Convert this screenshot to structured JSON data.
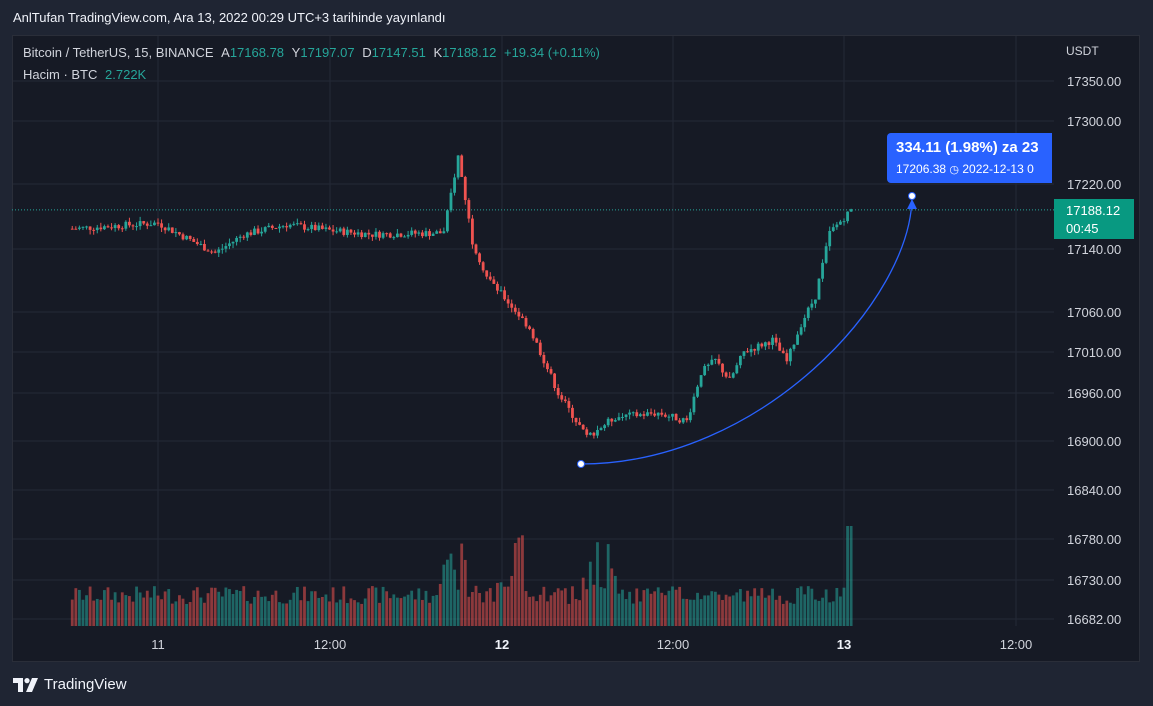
{
  "publish_line": "AnlTufan TradingView.com, Ara 13, 2022 00:29 UTC+3 tarihinde yayınlandı",
  "legend": {
    "symbol": "Bitcoin / TetherUS, 15, BINANCE",
    "open_label": "A",
    "open": "17168.78",
    "high_label": "Y",
    "high": "17197.07",
    "low_label": "D",
    "low": "17147.51",
    "close_label": "K",
    "close": "17188.12",
    "change": "+19.34 (+0.11%)",
    "volume_label": "Hacim · BTC",
    "volume": "2.722K"
  },
  "price_axis": {
    "currency": "USDT",
    "ticks": [
      "17350.00",
      "17300.00",
      "17220.00",
      "17140.00",
      "17060.00",
      "17010.00",
      "16960.00",
      "16900.00",
      "16840.00",
      "16780.00",
      "16730.00",
      "16682.00"
    ]
  },
  "time_axis": {
    "ticks": [
      "11",
      "12:00",
      "12",
      "12:00",
      "13",
      "12:00"
    ],
    "bold": [
      false,
      false,
      true,
      false,
      true,
      false
    ]
  },
  "current_price": {
    "price": "17188.12",
    "countdown": "00:45"
  },
  "measure": {
    "main": "334.11 (1.98%) za 23",
    "price": "17206.38",
    "time": "2022-12-13  0"
  },
  "brand": "TradingView",
  "colors": {
    "up": "#26a69a",
    "down": "#ef5350",
    "accent": "#2962ff",
    "background": "#161a25"
  },
  "chart_data": {
    "type": "candlestick",
    "symbol": "Bitcoin / TetherUS",
    "interval": "15",
    "exchange": "BINANCE",
    "ylim": [
      16682,
      17400
    ],
    "close_path": {
      "time": [
        "10 18:00",
        "11 00:00",
        "11 04:00",
        "11 06:00",
        "11 09:00",
        "11 12:00",
        "11 15:00",
        "11 20:00",
        "11 21:00",
        "11 22:00",
        "11 23:00",
        "12 02:00",
        "12 04:00",
        "12 06:00",
        "12 08:00",
        "12 11:00",
        "12 13:00",
        "12 14:00",
        "12 15:00",
        "12 16:00",
        "12 17:00",
        "12 19:00",
        "12 20:00",
        "12 21:00",
        "12 22:00",
        "12 23:00",
        "13 00:30"
      ],
      "close": [
        17165,
        17172,
        17135,
        17158,
        17170,
        17163,
        17158,
        17160,
        17255,
        17150,
        17105,
        17040,
        16960,
        16905,
        16930,
        16935,
        16925,
        16985,
        17000,
        16975,
        17010,
        17025,
        16998,
        17045,
        17080,
        17160,
        17188
      ]
    },
    "volume": {
      "label": "Hacim · BTC",
      "last": 2.722,
      "unit": "K",
      "peaks_time": [
        "11 21:00",
        "12 01:00",
        "12 07:00"
      ]
    },
    "measure_tool": {
      "from_price": 16872.27,
      "to_price": 17206.38,
      "change": 334.11,
      "change_pct": 1.98,
      "to_date": "2022-12-13"
    },
    "last_price": 17188.12
  }
}
